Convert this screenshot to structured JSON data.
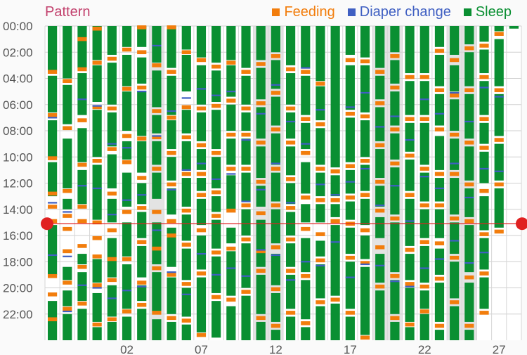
{
  "title": "Pattern",
  "legend": [
    {
      "label": "Feeding",
      "color": "#f27d0c"
    },
    {
      "label": "Diaper change",
      "color": "#3f5fc2"
    },
    {
      "label": "Sleep",
      "color": "#0a8f32"
    }
  ],
  "chart_data": {
    "type": "timeline",
    "y_tick_labels": [
      "00:00",
      "02:00",
      "04:00",
      "06:00",
      "08:00",
      "10:00",
      "12:00",
      "14:00",
      "16:00",
      "18:00",
      "20:00",
      "22:00"
    ],
    "x_tick_labels": [
      {
        "day": 2,
        "label": "02"
      },
      {
        "day": 7,
        "label": "07"
      },
      {
        "day": 12,
        "label": "12"
      },
      {
        "day": 17,
        "label": "17"
      },
      {
        "day": 22,
        "label": "22"
      },
      {
        "day": 27,
        "label": "27"
      }
    ],
    "days": [
      28,
      29,
      30,
      31,
      1,
      2,
      3,
      4,
      5,
      6,
      7,
      8,
      9,
      10,
      11,
      12,
      13,
      14,
      15,
      16,
      17,
      18,
      19,
      20,
      21,
      22,
      23,
      24,
      25,
      26,
      27,
      28
    ],
    "shaded_days": [
      4,
      11,
      12,
      19,
      20,
      24,
      25
    ],
    "current_time_hours": 15.1,
    "colors": {
      "feeding": "#f27d0c",
      "diaper": "#3f5fc2",
      "sleep": "#0a8f32",
      "now": "#e02020"
    },
    "sleep": [
      [
        [
          0,
          3.4
        ],
        [
          3.8,
          6.6
        ],
        [
          7.2,
          10.0
        ],
        [
          10.4,
          13.0
        ],
        [
          15.2,
          19.0
        ],
        [
          21.0,
          24.0
        ]
      ],
      [
        [
          0,
          4.0
        ],
        [
          4.5,
          7.5
        ],
        [
          8.6,
          12.4
        ],
        [
          13.2,
          14.0
        ],
        [
          18.4,
          19.4
        ],
        [
          20.2,
          21.4
        ],
        [
          22.0,
          24.0
        ]
      ],
      [
        [
          0,
          3.2
        ],
        [
          3.6,
          6.8
        ],
        [
          7.8,
          10.4
        ],
        [
          11.0,
          13.6
        ],
        [
          17.4,
          18.2
        ],
        [
          18.8,
          21.0
        ],
        [
          21.6,
          24.0
        ]
      ],
      [
        [
          0,
          2.6
        ],
        [
          3.0,
          5.8
        ],
        [
          6.4,
          10.0
        ],
        [
          10.6,
          14.8
        ],
        [
          17.8,
          19.6
        ],
        [
          20.4,
          22.6
        ],
        [
          23.0,
          24.0
        ]
      ],
      [
        [
          0,
          2.2
        ],
        [
          2.8,
          6.0
        ],
        [
          6.6,
          9.2
        ],
        [
          9.8,
          12.4
        ],
        [
          13.2,
          15.0
        ],
        [
          16.2,
          19.2
        ],
        [
          19.8,
          22.2
        ],
        [
          22.6,
          24.0
        ]
      ],
      [
        [
          0,
          1.6
        ],
        [
          2.2,
          4.6
        ],
        [
          5.0,
          8.0
        ],
        [
          8.8,
          10.2
        ],
        [
          11.2,
          13.8
        ],
        [
          15.0,
          17.6
        ],
        [
          18.2,
          21.6
        ],
        [
          22.2,
          24.0
        ]
      ],
      [
        [
          0,
          1.6
        ],
        [
          2.4,
          4.4
        ],
        [
          5.0,
          8.4
        ],
        [
          8.8,
          11.2
        ],
        [
          12.0,
          13.6
        ],
        [
          14.2,
          16.2
        ],
        [
          16.8,
          19.2
        ],
        [
          19.8,
          21.0
        ],
        [
          21.6,
          24.0
        ]
      ],
      [
        [
          0,
          2.8
        ],
        [
          3.4,
          6.2
        ],
        [
          6.8,
          8.2
        ],
        [
          8.8,
          10.6
        ],
        [
          11.2,
          13.2
        ],
        [
          15.0,
          18.2
        ],
        [
          18.8,
          21.8
        ],
        [
          22.4,
          24.0
        ]
      ],
      [
        [
          0,
          3.2
        ],
        [
          3.8,
          6.8
        ],
        [
          7.2,
          9.4
        ],
        [
          10.0,
          11.8
        ],
        [
          12.4,
          14.4
        ],
        [
          15.4,
          18.4
        ],
        [
          19.2,
          22.0
        ],
        [
          22.6,
          24.0
        ]
      ],
      [
        [
          0,
          1.8
        ],
        [
          2.2,
          5.0
        ],
        [
          6.4,
          8.2
        ],
        [
          8.8,
          11.0
        ],
        [
          11.6,
          13.8
        ],
        [
          14.4,
          16.4
        ],
        [
          17.0,
          19.4
        ],
        [
          20.0,
          22.2
        ],
        [
          22.8,
          24.0
        ]
      ],
      [
        [
          0,
          2.4
        ],
        [
          3.0,
          6.0
        ],
        [
          6.6,
          8.8
        ],
        [
          9.4,
          11.0
        ],
        [
          11.6,
          12.6
        ],
        [
          13.2,
          15.2
        ],
        [
          16.0,
          18.6
        ],
        [
          19.2,
          23.4
        ]
      ],
      [
        [
          0,
          2.8
        ],
        [
          3.4,
          5.8
        ],
        [
          6.4,
          9.4
        ],
        [
          10.0,
          12.4
        ],
        [
          13.0,
          14.2
        ],
        [
          14.8,
          17.0
        ],
        [
          17.6,
          20.4
        ],
        [
          21.0,
          23.8
        ]
      ],
      [
        [
          0,
          2.6
        ],
        [
          3.0,
          5.4
        ],
        [
          6.0,
          8.0
        ],
        [
          8.6,
          10.6
        ],
        [
          11.4,
          14.0
        ],
        [
          15.4,
          16.6
        ],
        [
          17.2,
          20.6
        ],
        [
          21.4,
          24.0
        ]
      ],
      [
        [
          0,
          3.2
        ],
        [
          3.8,
          6.0
        ],
        [
          6.6,
          8.0
        ],
        [
          8.6,
          10.6
        ],
        [
          11.2,
          13.4
        ],
        [
          14.0,
          16.0
        ],
        [
          16.6,
          20.0
        ],
        [
          20.6,
          24.0
        ]
      ],
      [
        [
          0,
          2.6
        ],
        [
          3.2,
          5.6
        ],
        [
          6.2,
          8.6
        ],
        [
          9.2,
          11.6
        ],
        [
          12.2,
          13.8
        ],
        [
          14.8,
          18.4
        ],
        [
          19.0,
          22.0
        ],
        [
          22.6,
          24.0
        ]
      ],
      [
        [
          0,
          2.0
        ],
        [
          2.6,
          4.8
        ],
        [
          5.4,
          7.6
        ],
        [
          8.2,
          10.6
        ],
        [
          11.2,
          13.4
        ],
        [
          14.0,
          16.6
        ],
        [
          17.4,
          19.8
        ],
        [
          20.4,
          22.6
        ],
        [
          23.2,
          24.0
        ]
      ],
      [
        [
          0,
          3.0
        ],
        [
          3.6,
          6.0
        ],
        [
          6.6,
          8.6
        ],
        [
          9.2,
          11.4
        ],
        [
          12.0,
          13.6
        ],
        [
          14.2,
          16.0
        ],
        [
          16.6,
          18.4
        ],
        [
          19.0,
          21.6
        ],
        [
          22.2,
          24.0
        ]
      ],
      [
        [
          0,
          3.2
        ],
        [
          3.8,
          6.8
        ],
        [
          7.4,
          9.4
        ],
        [
          10.4,
          12.8
        ],
        [
          13.6,
          15.0
        ],
        [
          16.2,
          18.8
        ],
        [
          19.4,
          22.4
        ],
        [
          23.0,
          24.0
        ]
      ],
      [
        [
          0,
          4.2
        ],
        [
          4.6,
          7.2
        ],
        [
          7.8,
          10.6
        ],
        [
          11.2,
          13.0
        ],
        [
          13.6,
          15.0
        ],
        [
          16.4,
          17.6
        ],
        [
          18.2,
          20.8
        ],
        [
          21.4,
          24.0
        ]
      ],
      [
        [
          0,
          10.8
        ],
        [
          11.4,
          13.0
        ],
        [
          13.6,
          14.6
        ],
        [
          15.2,
          20.6
        ],
        [
          21.2,
          24.0
        ]
      ],
      [
        [
          0,
          2.2
        ],
        [
          3.0,
          6.4
        ],
        [
          7.0,
          10.4
        ],
        [
          11.0,
          12.8
        ],
        [
          13.4,
          14.8
        ],
        [
          15.4,
          17.4
        ],
        [
          18.0,
          21.6
        ],
        [
          22.2,
          24.0
        ]
      ],
      [
        [
          0,
          2.4
        ],
        [
          3.0,
          6.6
        ],
        [
          7.2,
          10.0
        ],
        [
          10.6,
          12.6
        ],
        [
          13.2,
          15.2
        ],
        [
          16.0,
          17.8
        ],
        [
          18.4,
          23.6
        ]
      ],
      [
        [
          0,
          3.2
        ],
        [
          3.8,
          5.6
        ],
        [
          6.2,
          8.8
        ],
        [
          9.4,
          11.6
        ],
        [
          12.2,
          13.8
        ],
        [
          14.6,
          16.2
        ],
        [
          17.4,
          19.6
        ],
        [
          20.2,
          24.0
        ]
      ],
      [
        [
          0,
          2.0
        ],
        [
          2.6,
          4.4
        ],
        [
          5.0,
          7.6
        ],
        [
          8.2,
          10.2
        ],
        [
          10.8,
          14.4
        ],
        [
          15.0,
          18.8
        ],
        [
          19.4,
          22.0
        ],
        [
          22.6,
          24.0
        ]
      ],
      [
        [
          0,
          3.6
        ],
        [
          4.2,
          6.8
        ],
        [
          7.4,
          9.6
        ],
        [
          10.2,
          12.6
        ],
        [
          13.2,
          16.8
        ],
        [
          17.4,
          19.4
        ],
        [
          20.0,
          22.6
        ],
        [
          23.0,
          24.0
        ]
      ],
      [
        [
          0,
          3.6
        ],
        [
          4.2,
          6.8
        ],
        [
          7.4,
          10.6
        ],
        [
          11.2,
          13.4
        ],
        [
          14.0,
          16.2
        ],
        [
          16.8,
          19.6
        ],
        [
          20.2,
          21.6
        ],
        [
          22.0,
          24.0
        ]
      ],
      [
        [
          0,
          1.6
        ],
        [
          2.2,
          4.6
        ],
        [
          5.2,
          7.6
        ],
        [
          8.4,
          11.0
        ],
        [
          11.6,
          13.4
        ],
        [
          14.0,
          16.2
        ],
        [
          17.0,
          19.0
        ],
        [
          19.6,
          22.6
        ],
        [
          23.2,
          24.0
        ]
      ],
      [
        [
          0,
          2.2
        ],
        [
          3.0,
          5.0
        ],
        [
          5.6,
          8.0
        ],
        [
          8.6,
          11.0
        ],
        [
          11.6,
          14.4
        ],
        [
          15.0,
          17.4
        ],
        [
          18.0,
          20.8
        ],
        [
          21.4,
          24.0
        ]
      ],
      [
        [
          0,
          1.4
        ],
        [
          2.0,
          4.6
        ],
        [
          5.2,
          8.6
        ],
        [
          9.2,
          11.8
        ],
        [
          12.4,
          14.6
        ],
        [
          15.2,
          18.8
        ],
        [
          19.6,
          22.6
        ],
        [
          23.2,
          24.0
        ]
      ],
      [
        [
          0,
          1.2
        ],
        [
          1.8,
          3.6
        ],
        [
          4.2,
          6.8
        ],
        [
          7.4,
          9.0
        ],
        [
          9.6,
          12.0
        ],
        [
          13.0,
          15.6
        ],
        [
          16.2,
          18.6
        ],
        [
          19.2,
          21.6
        ]
      ],
      [
        [
          0,
          0.4
        ],
        [
          1.0,
          4.6
        ],
        [
          5.2,
          8.4
        ],
        [
          9.0,
          11.8
        ],
        [
          12.4,
          15.4
        ]
      ],
      [
        [
          0,
          0.2
        ]
      ]
    ],
    "feeding": [
      [
        3.5,
        6.8,
        10.1,
        12.8,
        13.8,
        14.9,
        19.1,
        20.5,
        22.4
      ],
      [
        4.2,
        7.8,
        12.6,
        14.5,
        15.5,
        17.2,
        19.6,
        21.6
      ],
      [
        1.0,
        3.3,
        7.2,
        10.6,
        13.8,
        14.9,
        16.8,
        18.4,
        21.2
      ],
      [
        0.2,
        2.8,
        6.2,
        10.3,
        15.0,
        16.2,
        17.6,
        19.8,
        22.8
      ],
      [
        2.5,
        6.3,
        9.4,
        12.8,
        15.6,
        17.8,
        19.4,
        22.4
      ],
      [
        1.8,
        4.8,
        8.4,
        10.4,
        14.2,
        17.8,
        21.8
      ],
      [
        0.1,
        2.0,
        4.7,
        8.6,
        11.6,
        13.9,
        16.5,
        19.6,
        21.3
      ],
      [
        3.0,
        6.5,
        8.5,
        10.9,
        14.2,
        17.0,
        18.5,
        21.9
      ],
      [
        0.1,
        3.5,
        7.0,
        9.7,
        12.1,
        14.9,
        16.0,
        19.0,
        22.3
      ],
      [
        2.0,
        6.2,
        8.5,
        11.3,
        14.1,
        16.7,
        19.7,
        22.5
      ],
      [
        2.6,
        6.3,
        9.1,
        11.3,
        12.9,
        15.6,
        18.9,
        23.6
      ],
      [
        3.1,
        6.1,
        9.7,
        12.7,
        14.5,
        17.3,
        20.7
      ],
      [
        2.8,
        5.7,
        8.3,
        10.9,
        14.1,
        17.0,
        20.9
      ],
      [
        3.5,
        6.3,
        8.3,
        10.9,
        13.7,
        16.3,
        20.3
      ],
      [
        2.9,
        5.9,
        8.9,
        11.9,
        14.3,
        17.2,
        18.7,
        22.3
      ],
      [
        2.3,
        5.1,
        7.9,
        10.9,
        13.7,
        16.9,
        20.1,
        22.9
      ],
      [
        3.3,
        6.3,
        8.9,
        11.7,
        13.9,
        16.3,
        18.7,
        21.9
      ],
      [
        3.5,
        7.1,
        9.7,
        13.1,
        15.5,
        19.1,
        22.7
      ],
      [
        4.4,
        7.5,
        10.9,
        13.3,
        15.9,
        17.9,
        21.1
      ],
      [
        11.1,
        13.3,
        14.9,
        20.9
      ],
      [
        2.6,
        6.7,
        10.7,
        13.1,
        15.1,
        17.7,
        21.9
      ],
      [
        2.7,
        6.9,
        10.3,
        12.9,
        15.6,
        18.1,
        23.8
      ],
      [
        3.5,
        5.9,
        9.1,
        11.9,
        14.1,
        16.9,
        19.9
      ],
      [
        2.3,
        4.7,
        7.9,
        10.5,
        14.7,
        19.1,
        22.3
      ],
      [
        3.9,
        7.1,
        9.9,
        12.9,
        17.1,
        19.7,
        22.8
      ],
      [
        3.9,
        7.1,
        10.9,
        13.7,
        16.5,
        19.9,
        21.8
      ],
      [
        1.9,
        4.9,
        7.9,
        11.3,
        13.7,
        16.6,
        19.3,
        22.9
      ],
      [
        2.6,
        5.3,
        8.3,
        11.3,
        14.7,
        17.7,
        21.1
      ],
      [
        1.7,
        4.9,
        8.9,
        12.1,
        14.9,
        19.2,
        22.9
      ],
      [
        1.5,
        3.9,
        7.1,
        9.3,
        12.6,
        15.9,
        18.9,
        21.9
      ],
      [
        0.6,
        4.9,
        8.7,
        12.1,
        15.7
      ],
      []
    ],
    "diaper": [
      [
        7.0,
        13.5,
        17.5
      ],
      [
        14.2,
        17.6,
        21.8
      ],
      [
        5.6,
        12.2,
        19.8
      ],
      [
        6.1,
        12.4,
        20.0
      ],
      [
        9.0,
        14.4,
        20.8
      ],
      [
        9.3,
        13.3,
        20.2
      ],
      [
        5.0,
        12.9,
        19.9
      ],
      [
        1.5,
        8.4,
        15.6
      ],
      [
        6.5,
        12.5,
        18.8
      ],
      [
        5.5,
        11.0,
        20.5
      ],
      [
        4.8,
        10.5,
        17.4
      ],
      [
        5.3,
        11.7,
        19.0
      ],
      [
        5.0,
        11.3,
        18.5
      ],
      [
        8.7,
        13.4,
        19.1
      ],
      [
        6.7,
        12.5,
        17.1
      ],
      [
        4.5,
        10.5,
        17.5
      ],
      [
        7.3,
        13.5,
        19.4
      ],
      [
        3.2,
        9.0,
        18.0
      ],
      [
        6.4,
        12.1,
        18.3
      ],
      [
        12.9,
        16.5
      ],
      [
        6.2,
        11.9,
        19.2
      ],
      [
        5.1,
        10.9,
        18.2
      ],
      [
        7.7,
        13.7,
        18.3
      ],
      [
        6.9,
        12.2,
        19.5
      ],
      [
        8.7,
        14.9,
        19.9
      ],
      [
        5.6,
        11.5,
        18.5
      ],
      [
        6.7,
        12.4,
        17.8
      ],
      [
        5.1,
        10.5,
        16.4
      ],
      [
        7.3,
        13.1,
        18.1
      ],
      [
        4.7,
        10.9,
        17.3
      ],
      [
        5.4,
        11.1
      ],
      []
    ]
  }
}
